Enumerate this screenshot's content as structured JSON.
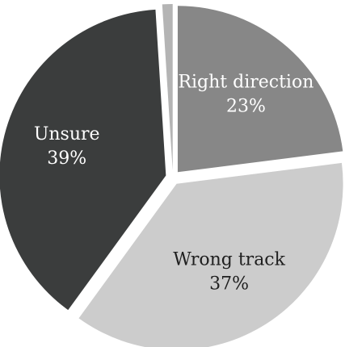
{
  "chart_data": {
    "type": "pie",
    "title": "",
    "slices": [
      {
        "label": "Right direction",
        "value": 23,
        "display": "23%",
        "color": "#878787",
        "text_color": "#ffffff"
      },
      {
        "label": "Wrong track",
        "value": 37,
        "display": "37%",
        "color": "#cccccc",
        "text_color": "#1f1f1f"
      },
      {
        "label": "Unsure",
        "value": 39,
        "display": "39%",
        "color": "#3b3d3d",
        "text_color": "#ffffff"
      },
      {
        "label": "",
        "value": 1,
        "display": "",
        "color": "#b4b4b4",
        "text_color": "#1f1f1f"
      }
    ],
    "start_angle_deg": 0,
    "direction": "clockwise",
    "exploded": true,
    "legend": "none",
    "background": "#ffffff"
  }
}
